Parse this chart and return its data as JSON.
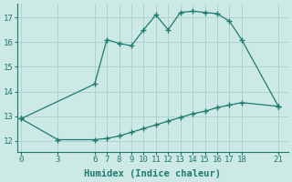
{
  "x_upper": [
    0,
    6,
    7,
    8,
    9,
    10,
    11,
    12,
    13,
    14,
    15,
    16,
    17,
    18,
    21
  ],
  "y_upper": [
    12.9,
    14.3,
    16.1,
    15.95,
    15.85,
    16.5,
    17.1,
    16.5,
    17.2,
    17.25,
    17.2,
    17.15,
    16.85,
    16.1,
    13.4
  ],
  "x_lower": [
    0,
    3,
    6,
    7,
    8,
    9,
    10,
    11,
    12,
    13,
    14,
    15,
    16,
    17,
    18,
    21
  ],
  "y_lower": [
    12.9,
    12.05,
    12.05,
    12.1,
    12.2,
    12.35,
    12.5,
    12.65,
    12.8,
    12.95,
    13.1,
    13.2,
    13.35,
    13.45,
    13.55,
    13.4
  ],
  "xticks": [
    0,
    3,
    6,
    7,
    8,
    9,
    10,
    11,
    12,
    13,
    14,
    15,
    16,
    17,
    18,
    21
  ],
  "yticks": [
    12,
    13,
    14,
    15,
    16,
    17
  ],
  "xlabel": "Humidex (Indice chaleur)",
  "xlim": [
    -0.3,
    21.8
  ],
  "ylim": [
    11.55,
    17.55
  ],
  "line_color": "#1e7a6e",
  "bg_color": "#cce9e5",
  "grid_color": "#aad0cb",
  "tick_fontsize": 6.5,
  "label_fontsize": 7.5
}
